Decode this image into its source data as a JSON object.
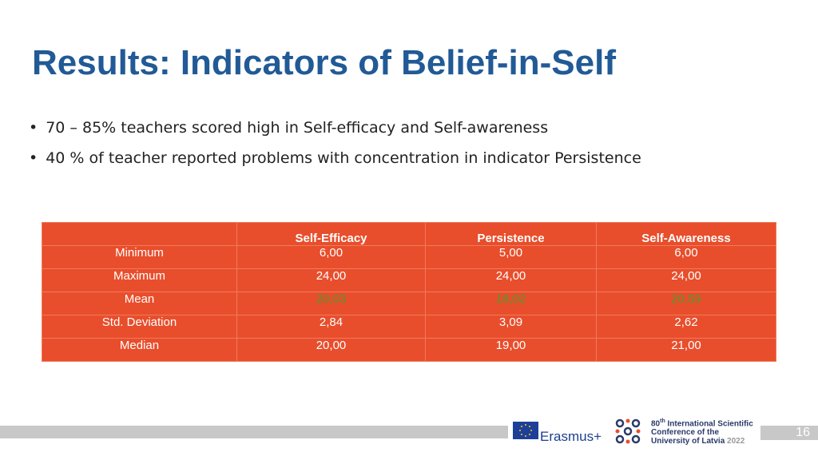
{
  "header": {
    "title": "Results: Indicators of Belief-in-Self"
  },
  "bullets": [
    "70 – 85% teachers scored high in Self-efficacy and Self-awareness",
    "40 % of teacher reported problems with concentration in indicator Persistence"
  ],
  "table": {
    "columns": [
      "",
      "Self-Efficacy",
      "Persistence",
      "Self-Awareness"
    ],
    "rows": [
      [
        "Minimum",
        "6,00",
        "5,00",
        "6,00"
      ],
      [
        "Maximum",
        "24,00",
        "24,00",
        "24,00"
      ],
      [
        "Mean",
        "20,03",
        "18,02",
        "20,59"
      ],
      [
        "Std. Deviation",
        "2,84",
        "3,09",
        "2,62"
      ],
      [
        "Median",
        "20,00",
        "19,00",
        "21,00"
      ]
    ]
  },
  "footer": {
    "erasmus": "Erasmus+",
    "conference": {
      "number": "80",
      "suffix": "th",
      "lines": [
        "International Scientific",
        "Conference of the",
        "University of Latvia"
      ],
      "year": "2022"
    },
    "page": "16"
  }
}
